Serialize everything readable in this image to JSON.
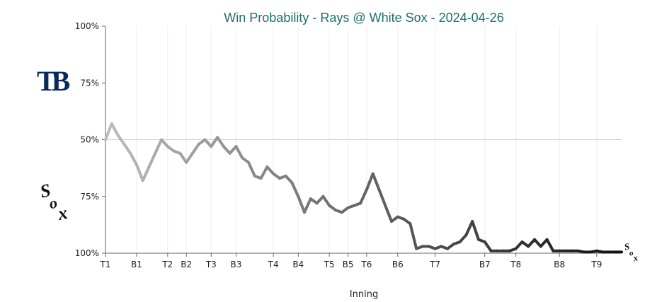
{
  "chart_data": {
    "type": "line",
    "title": "Win Probability - Rays @ White Sox - 2024-04-26",
    "xlabel": "Inning",
    "ylabel": "",
    "y_tick_labels": [
      "100%",
      "75%",
      "50%",
      "75%",
      "100%"
    ],
    "x_tick_labels": [
      "T1",
      "B1",
      "T2",
      "B2",
      "T3",
      "B3",
      "T4",
      "B4",
      "T5",
      "B5",
      "T6",
      "B6",
      "T7",
      "B7",
      "T8",
      "B8",
      "T9"
    ],
    "x_tick_positions": [
      0,
      5,
      10,
      13,
      17,
      21,
      27,
      31,
      36,
      39,
      42,
      47,
      53,
      61,
      66,
      73,
      79
    ],
    "ylim": [
      0,
      100
    ],
    "grid": "vertical at innings, horizontal at 50%",
    "series": [
      {
        "values": [
          50,
          57,
          52,
          48,
          44,
          39,
          32,
          38,
          44,
          50,
          47,
          45,
          44,
          40,
          44,
          48,
          50,
          47,
          51,
          47,
          44,
          47,
          42,
          40,
          34,
          33,
          38,
          35,
          33,
          34,
          31,
          25,
          18,
          24,
          22,
          25,
          21,
          19,
          18,
          20,
          21,
          22,
          28,
          35,
          28,
          21,
          14,
          16,
          15,
          13,
          2,
          3,
          3,
          2,
          3,
          2,
          4,
          5,
          8,
          14,
          6,
          5,
          1,
          1,
          1,
          1,
          2,
          5,
          3,
          6,
          3,
          6,
          1,
          1,
          1,
          1,
          1,
          0.5,
          0.5,
          1,
          0.5,
          0.5,
          0.5,
          0.5
        ]
      }
    ],
    "colors": {
      "start": "#bbbbbb",
      "end": "#111111",
      "title": "#1e6e6e",
      "midline": "#cccccc",
      "grid": "#eeeeee"
    }
  },
  "logos": {
    "top": "TB",
    "bottom": "Sox"
  }
}
